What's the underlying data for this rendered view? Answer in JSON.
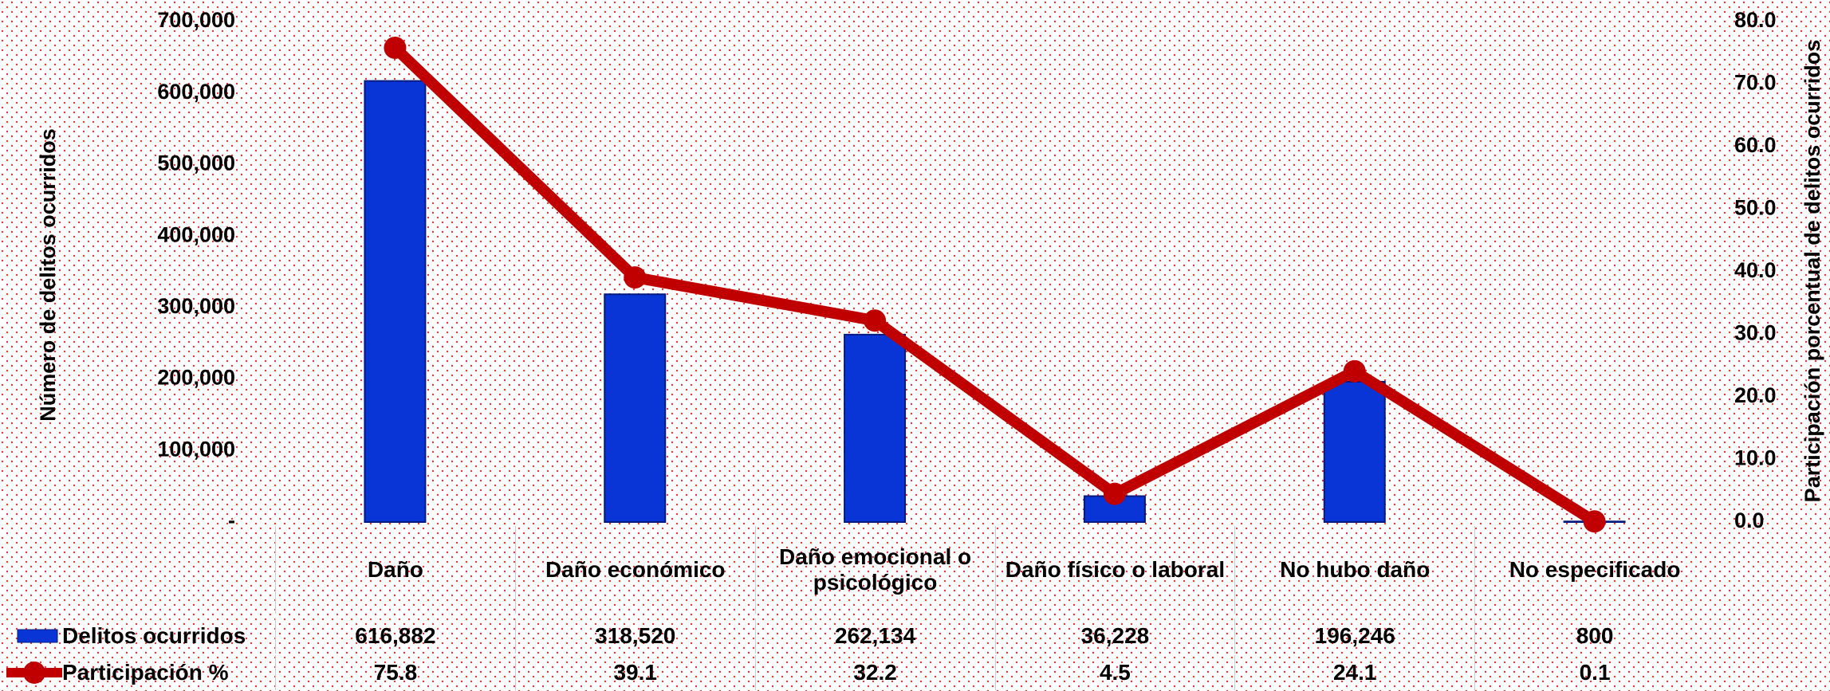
{
  "chart_data": {
    "type": "bar",
    "categories": [
      "Daño",
      "Daño económico",
      "Daño emocional o psicológico",
      "Daño físico o laboral",
      "No hubo daño",
      "No especificado"
    ],
    "series": [
      {
        "name": "Delitos ocurridos",
        "type": "bar",
        "color": "#0a35d6",
        "axis": "y",
        "values": [
          616882,
          318520,
          262134,
          36228,
          196246,
          800
        ],
        "value_labels": [
          "616,882",
          "318,520",
          "262,134",
          "36,228",
          "196,246",
          "800"
        ]
      },
      {
        "name": "Participación %",
        "type": "line",
        "color": "#c00000",
        "axis": "y2",
        "values": [
          75.8,
          39.1,
          32.2,
          4.5,
          24.1,
          0.1
        ]
      }
    ],
    "ylabel": "Número de delitos ocurridos",
    "y2label": "Participación porcentual de delitos ocurridos",
    "ylim": [
      0,
      700000
    ],
    "yticks": [
      {
        "value": 0,
        "label": "-"
      },
      {
        "value": 100000,
        "label": "100,000"
      },
      {
        "value": 200000,
        "label": "200,000"
      },
      {
        "value": 300000,
        "label": "300,000"
      },
      {
        "value": 400000,
        "label": "400,000"
      },
      {
        "value": 500000,
        "label": "500,000"
      },
      {
        "value": 600000,
        "label": "600,000"
      },
      {
        "value": 700000,
        "label": "700,000"
      }
    ],
    "y2lim": [
      0,
      80
    ],
    "y2ticks": [
      {
        "value": 0,
        "label": "0.0"
      },
      {
        "value": 10,
        "label": "10.0"
      },
      {
        "value": 20,
        "label": "20.0"
      },
      {
        "value": 30,
        "label": "30.0"
      },
      {
        "value": 40,
        "label": "40.0"
      },
      {
        "value": 50,
        "label": "50.0"
      },
      {
        "value": 60,
        "label": "60.0"
      },
      {
        "value": 70,
        "label": "70.0"
      },
      {
        "value": 80,
        "label": "80.0"
      }
    ],
    "grid": false
  }
}
